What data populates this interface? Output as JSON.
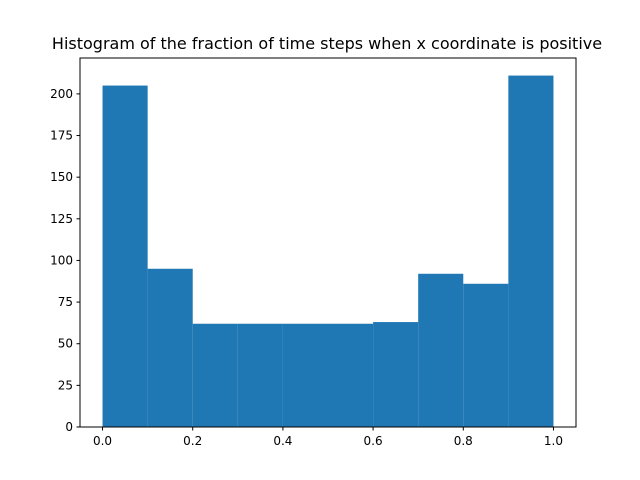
{
  "chart_data": {
    "type": "bar",
    "title": "Histogram of the fraction of time steps when x coordinate is positive",
    "xlabel": "",
    "ylabel": "",
    "bins": [
      {
        "from": 0.0,
        "to": 0.1,
        "value": 205
      },
      {
        "from": 0.1,
        "to": 0.2,
        "value": 95
      },
      {
        "from": 0.2,
        "to": 0.3,
        "value": 62
      },
      {
        "from": 0.3,
        "to": 0.4,
        "value": 62
      },
      {
        "from": 0.4,
        "to": 0.5,
        "value": 62
      },
      {
        "from": 0.5,
        "to": 0.6,
        "value": 62
      },
      {
        "from": 0.6,
        "to": 0.7,
        "value": 63
      },
      {
        "from": 0.7,
        "to": 0.8,
        "value": 92
      },
      {
        "from": 0.8,
        "to": 0.9,
        "value": 86
      },
      {
        "from": 0.9,
        "to": 1.0,
        "value": 211
      }
    ],
    "xlim": [
      -0.05,
      1.05
    ],
    "ylim": [
      0,
      221.55
    ],
    "x_ticks": [
      "0.0",
      "0.2",
      "0.4",
      "0.6",
      "0.8",
      "1.0"
    ],
    "y_ticks": [
      "0",
      "25",
      "50",
      "75",
      "100",
      "125",
      "150",
      "175",
      "200"
    ],
    "bar_color": "#1f77b4",
    "grid": false,
    "legend": "none"
  }
}
